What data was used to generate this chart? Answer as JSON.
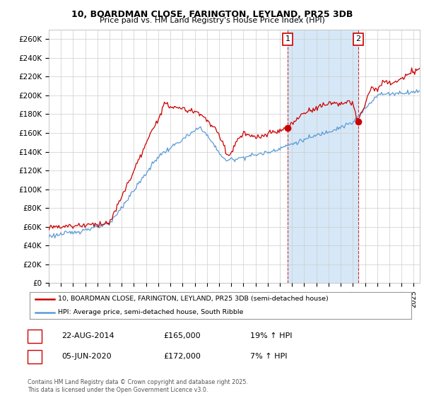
{
  "title_line1": "10, BOARDMAN CLOSE, FARINGTON, LEYLAND, PR25 3DB",
  "title_line2": "Price paid vs. HM Land Registry's House Price Index (HPI)",
  "ylabel_ticks": [
    "£0",
    "£20K",
    "£40K",
    "£60K",
    "£80K",
    "£100K",
    "£120K",
    "£140K",
    "£160K",
    "£180K",
    "£200K",
    "£220K",
    "£240K",
    "£260K"
  ],
  "ytick_values": [
    0,
    20000,
    40000,
    60000,
    80000,
    100000,
    120000,
    140000,
    160000,
    180000,
    200000,
    220000,
    240000,
    260000
  ],
  "ylim": [
    0,
    270000
  ],
  "xlim_start": 1995.0,
  "xlim_end": 2025.5,
  "hpi_color": "#5b9bd5",
  "hpi_fill_color": "#d6e8f7",
  "price_color": "#cc0000",
  "marker1_x": 2014.64,
  "marker1_y": 165000,
  "marker2_x": 2020.43,
  "marker2_y": 172000,
  "annotation1": [
    "1",
    "22-AUG-2014",
    "£165,000",
    "19% ↑ HPI"
  ],
  "annotation2": [
    "2",
    "05-JUN-2020",
    "£172,000",
    "7% ↑ HPI"
  ],
  "legend_label1": "10, BOARDMAN CLOSE, FARINGTON, LEYLAND, PR25 3DB (semi-detached house)",
  "legend_label2": "HPI: Average price, semi-detached house, South Ribble",
  "footer": "Contains HM Land Registry data © Crown copyright and database right 2025.\nThis data is licensed under the Open Government Licence v3.0.",
  "background_color": "#ffffff",
  "grid_color": "#cccccc"
}
